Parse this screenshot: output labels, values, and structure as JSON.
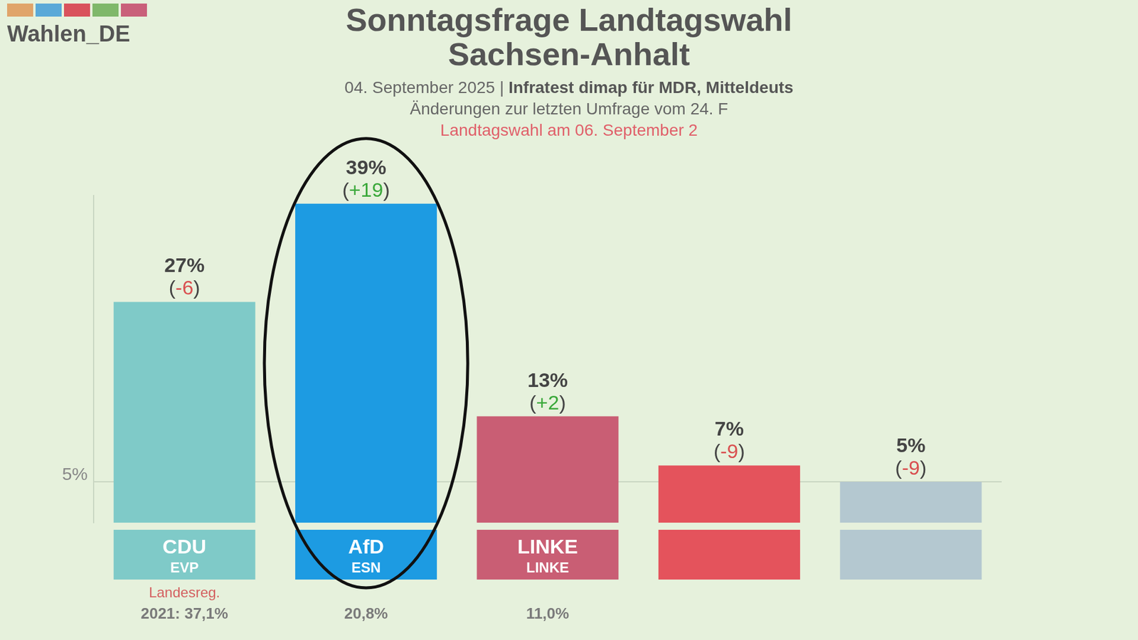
{
  "chart_data": {
    "type": "bar",
    "title": "Sonntagsfrage Landtagswahl Sachsen-Anhalt",
    "subtitle": [
      "04. September 2025 |",
      "Infratest dimap für MDR, Mitteldeuts",
      "Änderungen zur letzten Umfrage vom 24. F"
    ],
    "annotations": {
      "logo": "Wahlen_DE",
      "election": "Landtagswahl am 06. September 2",
      "threshold": {
        "value": 5,
        "label": "5%"
      }
    },
    "categories": [
      "CDU",
      "AfD",
      "LINKE",
      null,
      null
    ],
    "sublabels": [
      "EVP",
      "ESN",
      "LINKE",
      null,
      null
    ],
    "values": [
      27,
      39,
      13,
      7,
      5
    ],
    "value_labels": [
      "27%",
      "39%",
      "13%",
      "7%",
      "5%"
    ],
    "changes": [
      -6,
      19,
      2,
      -9,
      -9
    ],
    "change_labels": [
      "(-6)",
      "(+19)",
      "(+2)",
      "(-9)",
      "(-9)"
    ],
    "notes": [
      "Landesreg.",
      null,
      null,
      null,
      null
    ],
    "previous_results": [
      37.1,
      20.8,
      11.0,
      null,
      null
    ],
    "previous_labels": [
      "2021: 37,1%",
      "20,8%",
      "11,0%",
      null,
      null
    ],
    "colors": [
      "#7fcac8",
      "#1d9be2",
      "#c95e74",
      "#e4535c",
      "#b4c8d0"
    ],
    "ylim": [
      0,
      40
    ],
    "grid": false,
    "data_labels": true,
    "tick_labels": false
  }
}
